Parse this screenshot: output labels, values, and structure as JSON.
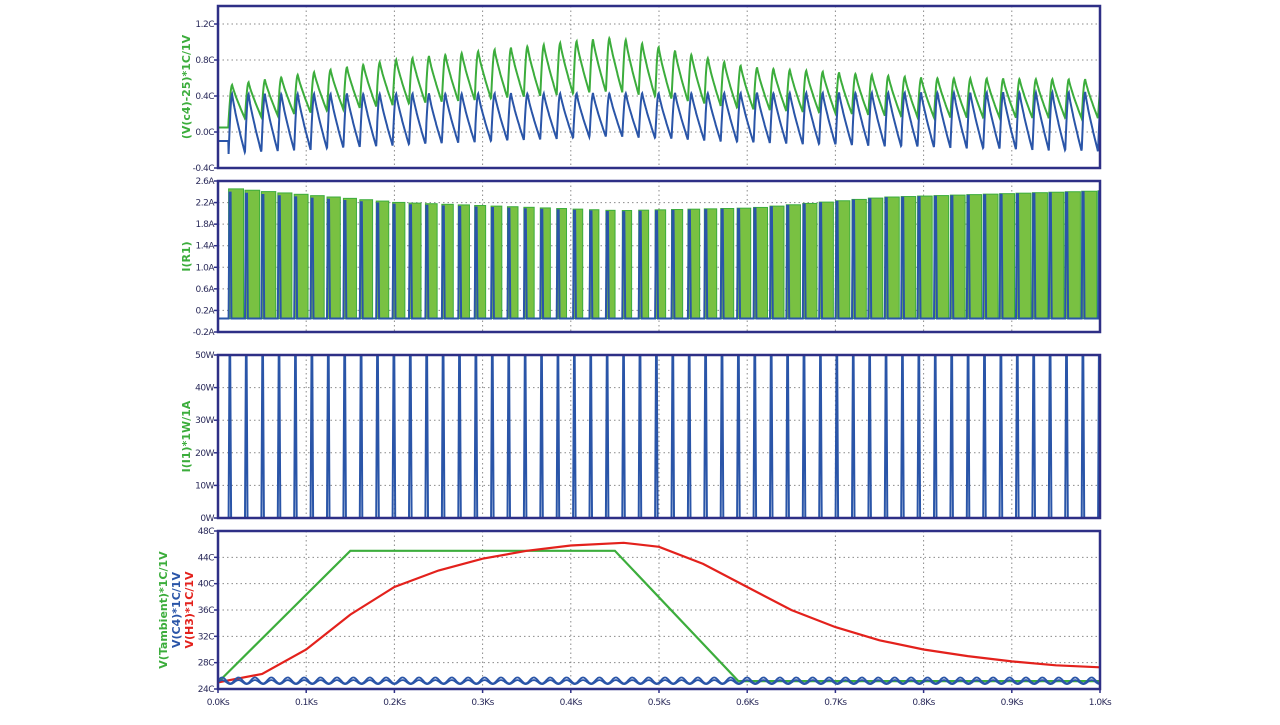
{
  "colors": {
    "frame": "#2e2f86",
    "green": "#3cad3c",
    "green_fill": "#79c142",
    "blue": "#2a55a8",
    "red": "#e3211c",
    "grid": "#8a8a8a"
  },
  "chart_data": [
    {
      "type": "line",
      "title": "",
      "ylabel": "(V(c4)-25)*1C/1V",
      "ylabel_color": "green",
      "ylim": [
        -0.4,
        1.4
      ],
      "yticks": [
        "1.2C",
        "0.8C",
        "0.4C",
        "0.0C",
        "-0.4C"
      ],
      "ytick_values": [
        1.2,
        0.8,
        0.4,
        0.0,
        -0.4
      ],
      "series": [
        {
          "name": "(V(c4)-25)",
          "color": "green",
          "kind": "sawtooth",
          "period": 0.0186,
          "max_env": [
            [
              0,
              0.5
            ],
            [
              0.2,
              0.8
            ],
            [
              0.45,
              1.05
            ],
            [
              0.6,
              0.72
            ],
            [
              0.8,
              0.6
            ],
            [
              1,
              0.58
            ]
          ],
          "min_env": [
            [
              0,
              0.12
            ],
            [
              0.2,
              0.3
            ],
            [
              0.45,
              0.45
            ],
            [
              0.6,
              0.25
            ],
            [
              0.8,
              0.16
            ],
            [
              1,
              0.15
            ]
          ]
        },
        {
          "name": "V(c4) blue",
          "color": "blue",
          "kind": "sawtooth",
          "period": 0.0186,
          "max_env": [
            [
              0,
              0.42
            ],
            [
              1,
              0.44
            ]
          ],
          "min_env": [
            [
              0,
              -0.25
            ],
            [
              0.2,
              -0.15
            ],
            [
              0.45,
              -0.05
            ],
            [
              0.6,
              -0.12
            ],
            [
              1,
              -0.22
            ]
          ]
        }
      ]
    },
    {
      "type": "line",
      "ylabel": "I(R1)",
      "ylabel_color": "green",
      "ylim": [
        -0.2,
        2.6
      ],
      "yticks": [
        "2.6A",
        "2.2A",
        "1.8A",
        "1.4A",
        "1.0A",
        "0.6A",
        "0.2A",
        "-0.2A"
      ],
      "ytick_values": [
        2.6,
        2.2,
        1.8,
        1.4,
        1.0,
        0.6,
        0.2,
        -0.2
      ],
      "series": [
        {
          "name": "I(R1) green",
          "color": "green_fill",
          "kind": "pwm_fill",
          "period": 0.0186,
          "low": 0.05,
          "high_env": [
            [
              0,
              2.47
            ],
            [
              0.2,
              2.2
            ],
            [
              0.45,
              2.05
            ],
            [
              0.6,
              2.1
            ],
            [
              0.75,
              2.3
            ],
            [
              1,
              2.42
            ]
          ],
          "duty_env": [
            [
              0,
              0.92
            ],
            [
              0.25,
              0.7
            ],
            [
              0.45,
              0.55
            ],
            [
              0.6,
              0.85
            ],
            [
              1,
              0.93
            ]
          ]
        },
        {
          "name": "I(R1) blue",
          "color": "blue",
          "kind": "pulse",
          "period": 0.0186,
          "low": 0.05,
          "duty": 0.12,
          "high_env": [
            [
              0,
              2.4
            ],
            [
              0.2,
              2.16
            ],
            [
              0.45,
              2.02
            ],
            [
              0.6,
              2.08
            ],
            [
              0.75,
              2.28
            ],
            [
              1,
              2.4
            ]
          ]
        }
      ]
    },
    {
      "type": "line",
      "ylabel": "I(I1)*1W/1A",
      "ylabel_color": "green",
      "ylim": [
        0,
        50
      ],
      "yticks": [
        "50W",
        "40W",
        "30W",
        "20W",
        "10W",
        "0W"
      ],
      "ytick_values": [
        50,
        40,
        30,
        20,
        10,
        0
      ],
      "series": [
        {
          "name": "I(I1)",
          "color": "blue",
          "kind": "pulse",
          "period": 0.0186,
          "low": 0,
          "duty": 0.1,
          "high_env": [
            [
              0,
              50
            ],
            [
              1,
              50
            ]
          ]
        }
      ]
    },
    {
      "type": "line",
      "ylabel_lines": [
        {
          "text": "V(Tambient)*1C/1V",
          "color": "green"
        },
        {
          "text": "V(C4)*1C/1V",
          "color": "blue"
        },
        {
          "text": "V(H3)*1C/1V",
          "color": "red"
        }
      ],
      "ylim": [
        24,
        48
      ],
      "yticks": [
        "48C",
        "44C",
        "40C",
        "36C",
        "32C",
        "28C",
        "24C"
      ],
      "ytick_values": [
        48,
        44,
        40,
        36,
        32,
        28,
        24
      ],
      "xlabel": "",
      "xlim": [
        0,
        1.0
      ],
      "xticks": [
        "0.0Ks",
        "0.1Ks",
        "0.2Ks",
        "0.3Ks",
        "0.4Ks",
        "0.5Ks",
        "0.6Ks",
        "0.7Ks",
        "0.8Ks",
        "0.9Ks",
        "1.0Ks"
      ],
      "series": [
        {
          "name": "V(Tambient)",
          "color": "green",
          "kind": "points",
          "points": [
            [
              0,
              25
            ],
            [
              0.15,
              45
            ],
            [
              0.45,
              45
            ],
            [
              0.59,
              25.2
            ],
            [
              1.0,
              25.2
            ]
          ]
        },
        {
          "name": "V(H3)",
          "color": "red",
          "kind": "points",
          "points": [
            [
              0,
              25
            ],
            [
              0.05,
              26.3
            ],
            [
              0.1,
              30
            ],
            [
              0.15,
              35.3
            ],
            [
              0.2,
              39.5
            ],
            [
              0.25,
              42
            ],
            [
              0.3,
              43.8
            ],
            [
              0.35,
              45
            ],
            [
              0.4,
              45.8
            ],
            [
              0.46,
              46.2
            ],
            [
              0.5,
              45.6
            ],
            [
              0.55,
              43
            ],
            [
              0.6,
              39.5
            ],
            [
              0.65,
              36
            ],
            [
              0.7,
              33.4
            ],
            [
              0.75,
              31.4
            ],
            [
              0.8,
              30
            ],
            [
              0.85,
              29
            ],
            [
              0.9,
              28.2
            ],
            [
              0.95,
              27.6
            ],
            [
              1.0,
              27.3
            ]
          ]
        },
        {
          "name": "V(C4)",
          "color": "blue",
          "kind": "sine",
          "period": 0.0186,
          "center": 25.3,
          "amp": 0.45
        },
        {
          "name": "V(C4) b",
          "color": "blue",
          "kind": "sine",
          "period": 0.0186,
          "center": 25.05,
          "amp": 0.3
        }
      ]
    }
  ]
}
